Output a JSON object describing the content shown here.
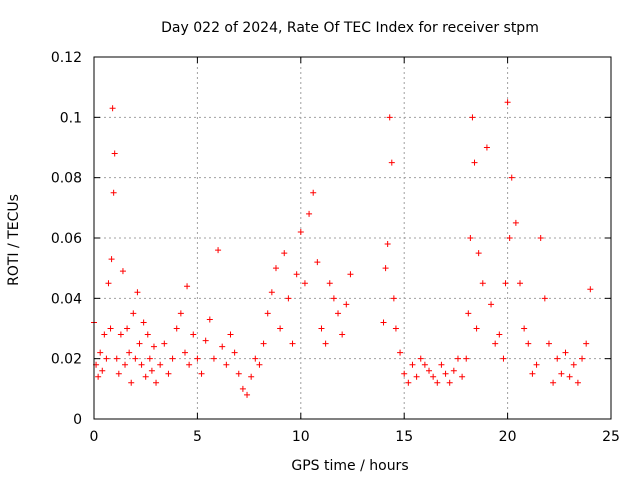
{
  "chart_data": {
    "type": "scatter",
    "title": "Day 022 of 2024, Rate Of TEC Index for receiver stpm",
    "xlabel": "GPS time / hours",
    "ylabel": "ROTI / TECUs",
    "xlim": [
      0,
      25
    ],
    "ylim": [
      0,
      0.12
    ],
    "x_ticks": [
      0,
      5,
      10,
      15,
      20,
      25
    ],
    "x_tick_labels": [
      "0",
      "5",
      "10",
      "15",
      "20",
      "25"
    ],
    "y_ticks": [
      0,
      0.02,
      0.04,
      0.06,
      0.08,
      0.1,
      0.12
    ],
    "y_tick_labels": [
      "0",
      "0.02",
      "0.04",
      "0.06",
      "0.08",
      "0.1",
      "0.12"
    ],
    "grid": true,
    "marker": "+",
    "color": "#ff0000",
    "series": [
      {
        "name": "ROTI",
        "x": [
          0.0,
          0.1,
          0.2,
          0.3,
          0.4,
          0.5,
          0.6,
          0.7,
          0.8,
          0.85,
          0.9,
          0.95,
          1.0,
          1.1,
          1.2,
          1.3,
          1.4,
          1.5,
          1.6,
          1.7,
          1.8,
          1.9,
          2.0,
          2.1,
          2.2,
          2.3,
          2.4,
          2.5,
          2.6,
          2.7,
          2.8,
          2.9,
          3.0,
          3.2,
          3.4,
          3.6,
          3.8,
          4.0,
          4.2,
          4.4,
          4.5,
          4.6,
          4.8,
          5.0,
          5.2,
          5.4,
          5.6,
          5.8,
          6.0,
          6.2,
          6.4,
          6.6,
          6.8,
          7.0,
          7.2,
          7.4,
          7.6,
          7.8,
          8.0,
          8.2,
          8.4,
          8.6,
          8.8,
          9.0,
          9.2,
          9.4,
          9.6,
          9.8,
          10.0,
          10.2,
          10.4,
          10.6,
          10.8,
          11.0,
          11.2,
          11.4,
          11.6,
          11.8,
          12.0,
          12.2,
          12.4,
          14.0,
          14.1,
          14.2,
          14.3,
          14.4,
          14.5,
          14.6,
          14.8,
          15.0,
          15.2,
          15.4,
          15.6,
          15.8,
          16.0,
          16.2,
          16.4,
          16.6,
          16.8,
          17.0,
          17.2,
          17.4,
          17.6,
          17.8,
          18.0,
          18.1,
          18.2,
          18.3,
          18.4,
          18.5,
          18.6,
          18.8,
          19.0,
          19.2,
          19.4,
          19.6,
          19.8,
          19.9,
          20.0,
          20.1,
          20.2,
          20.4,
          20.6,
          20.8,
          21.0,
          21.2,
          21.4,
          21.6,
          21.8,
          22.0,
          22.2,
          22.4,
          22.6,
          22.8,
          23.0,
          23.2,
          23.4,
          23.6,
          23.8,
          24.0
        ],
        "y": [
          0.032,
          0.018,
          0.014,
          0.022,
          0.016,
          0.028,
          0.02,
          0.045,
          0.03,
          0.053,
          0.103,
          0.075,
          0.088,
          0.02,
          0.015,
          0.028,
          0.049,
          0.018,
          0.03,
          0.022,
          0.012,
          0.035,
          0.02,
          0.042,
          0.025,
          0.018,
          0.032,
          0.014,
          0.028,
          0.02,
          0.016,
          0.024,
          0.012,
          0.018,
          0.025,
          0.015,
          0.02,
          0.03,
          0.035,
          0.022,
          0.044,
          0.018,
          0.028,
          0.02,
          0.015,
          0.026,
          0.033,
          0.02,
          0.056,
          0.024,
          0.018,
          0.028,
          0.022,
          0.015,
          0.01,
          0.008,
          0.014,
          0.02,
          0.018,
          0.025,
          0.035,
          0.042,
          0.05,
          0.03,
          0.055,
          0.04,
          0.025,
          0.048,
          0.062,
          0.045,
          0.068,
          0.075,
          0.052,
          0.03,
          0.025,
          0.045,
          0.04,
          0.035,
          0.028,
          0.038,
          0.048,
          0.032,
          0.05,
          0.058,
          0.1,
          0.085,
          0.04,
          0.03,
          0.022,
          0.015,
          0.012,
          0.018,
          0.014,
          0.02,
          0.018,
          0.016,
          0.014,
          0.012,
          0.018,
          0.015,
          0.012,
          0.016,
          0.02,
          0.014,
          0.02,
          0.035,
          0.06,
          0.1,
          0.085,
          0.03,
          0.055,
          0.045,
          0.09,
          0.038,
          0.025,
          0.028,
          0.02,
          0.045,
          0.105,
          0.06,
          0.08,
          0.065,
          0.045,
          0.03,
          0.025,
          0.015,
          0.018,
          0.06,
          0.04,
          0.025,
          0.012,
          0.02,
          0.015,
          0.022,
          0.014,
          0.018,
          0.012,
          0.02,
          0.025,
          0.043
        ]
      }
    ],
    "annotations": []
  }
}
